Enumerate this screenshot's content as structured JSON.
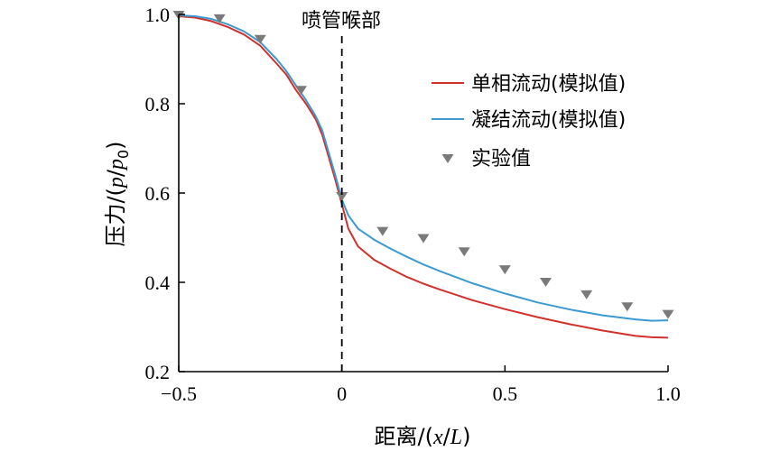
{
  "chart_data": {
    "type": "line",
    "title": "",
    "xlabel": {
      "prefix": "距离/(",
      "var": "x",
      "slash": "/",
      "var2": "L",
      "suffix": ")"
    },
    "ylabel": {
      "prefix": "压力/(",
      "var": "p",
      "slash": "/",
      "var2": "p",
      "sub": "0",
      "suffix": ")"
    },
    "xlim": [
      -0.5,
      1.0
    ],
    "ylim": [
      0.2,
      1.0
    ],
    "xticks": [
      -0.5,
      0,
      0.5,
      1.0
    ],
    "xtick_labels": [
      "−0.5",
      "0",
      "0.5",
      "1.0"
    ],
    "yticks": [
      0.2,
      0.4,
      0.6,
      0.8,
      1.0
    ],
    "ytick_labels": [
      "0.2",
      "0.4",
      "0.6",
      "0.8",
      "1.0"
    ],
    "grid": false,
    "legend_position": "top-right",
    "annotation": {
      "text": "喷管喉部",
      "x": 0
    },
    "series": [
      {
        "name": "单相流动(模拟值)",
        "kind": "line",
        "color": "#d0312d",
        "x": [
          -0.5,
          -0.45,
          -0.4,
          -0.35,
          -0.3,
          -0.25,
          -0.2,
          -0.17,
          -0.14,
          -0.11,
          -0.08,
          -0.06,
          -0.04,
          -0.02,
          0,
          0.02,
          0.05,
          0.1,
          0.15,
          0.2,
          0.25,
          0.3,
          0.4,
          0.5,
          0.6,
          0.7,
          0.8,
          0.9,
          0.95,
          1.0
        ],
        "y": [
          0.996,
          0.993,
          0.985,
          0.972,
          0.955,
          0.93,
          0.89,
          0.865,
          0.83,
          0.8,
          0.765,
          0.73,
          0.68,
          0.63,
          0.575,
          0.52,
          0.48,
          0.45,
          0.43,
          0.412,
          0.397,
          0.384,
          0.36,
          0.34,
          0.322,
          0.306,
          0.292,
          0.28,
          0.277,
          0.276
        ]
      },
      {
        "name": "凝结流动(模拟值)",
        "kind": "line",
        "color": "#3c9ad1",
        "x": [
          -0.5,
          -0.45,
          -0.4,
          -0.35,
          -0.3,
          -0.25,
          -0.2,
          -0.17,
          -0.14,
          -0.11,
          -0.08,
          -0.06,
          -0.04,
          -0.02,
          0,
          0.02,
          0.05,
          0.1,
          0.15,
          0.2,
          0.25,
          0.3,
          0.4,
          0.5,
          0.6,
          0.7,
          0.8,
          0.9,
          0.95,
          1.0
        ],
        "y": [
          0.998,
          0.996,
          0.99,
          0.978,
          0.962,
          0.938,
          0.9,
          0.873,
          0.84,
          0.808,
          0.772,
          0.74,
          0.69,
          0.64,
          0.585,
          0.55,
          0.52,
          0.495,
          0.475,
          0.457,
          0.44,
          0.425,
          0.398,
          0.375,
          0.355,
          0.339,
          0.326,
          0.317,
          0.314,
          0.315
        ]
      },
      {
        "name": "实验值",
        "kind": "markers",
        "color": "#7a7a7a",
        "x": [
          -0.5,
          -0.375,
          -0.25,
          -0.125,
          0,
          0.125,
          0.25,
          0.375,
          0.5,
          0.625,
          0.75,
          0.875,
          1.0
        ],
        "y": [
          0.998,
          0.99,
          0.944,
          0.83,
          0.592,
          0.514,
          0.498,
          0.468,
          0.428,
          0.4,
          0.372,
          0.345,
          0.328
        ]
      }
    ]
  }
}
